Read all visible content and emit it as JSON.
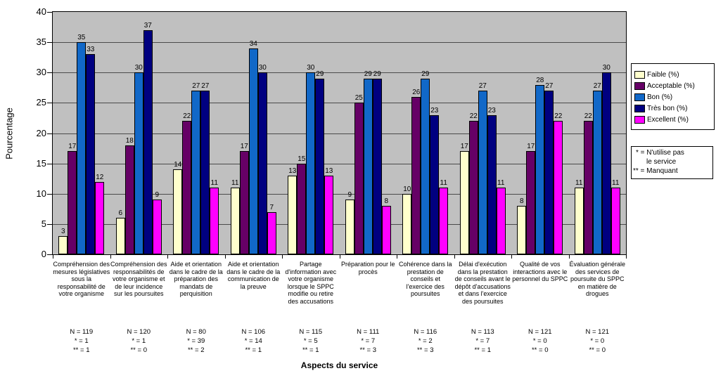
{
  "chart_data": {
    "type": "bar",
    "title": "",
    "ylabel": "Pourcentage",
    "xlabel": "Aspects du service",
    "ylim": [
      0,
      40
    ],
    "ytick_step": 5,
    "grid": true,
    "legend_position": "right",
    "plot_background": "#C0C0C0",
    "categories": [
      "Compréhension des mesures législatives sous la responsabilité de votre organisme",
      "Compréhension des responsabilités de votre organisme et de leur incidence sur les poursuites",
      "Aide et orientation dans le cadre de la préparation des mandats de perquisition",
      "Aide et orientation dans le cadre de la communication de la preuve",
      "Partage d'information avec votre organisme lorsque le SPPC modifie ou retire des accusations",
      "Préparation pour le procès",
      "Cohérence dans la prestation de conseils et l'exercice des poursuites",
      "Délai d'exécution dans la prestation de conseils avant le dépôt d'accusations et dans l'exercice des poursuites",
      "Qualité de vos interactions avec le personnel du SPPC",
      "Évaluation générale des services de poursuite du SPPC en matière de drogues"
    ],
    "series": [
      {
        "key": "faible",
        "name": "Faible (%)",
        "color": "#FFFFCC",
        "values": [
          3,
          6,
          14,
          11,
          13,
          9,
          10,
          17,
          8,
          11
        ]
      },
      {
        "key": "acceptable",
        "name": "Acceptable (%)",
        "color": "#660066",
        "values": [
          17,
          18,
          22,
          17,
          15,
          25,
          26,
          22,
          17,
          22
        ]
      },
      {
        "key": "bon",
        "name": "Bon (%)",
        "color": "#1168C8",
        "values": [
          35,
          30,
          27,
          34,
          30,
          29,
          29,
          27,
          28,
          27
        ]
      },
      {
        "key": "tres-bon",
        "name": "Très bon (%)",
        "color": "#000080",
        "values": [
          33,
          37,
          27,
          30,
          29,
          29,
          23,
          23,
          27,
          30
        ]
      },
      {
        "key": "excellent",
        "name": "Excellent (%)",
        "color": "#FF00FF",
        "values": [
          12,
          9,
          11,
          7,
          13,
          8,
          11,
          11,
          22,
          11
        ]
      }
    ],
    "sample_sizes": [
      [
        "N = 119",
        "* = 1",
        "** = 1"
      ],
      [
        "N = 120",
        "* = 1",
        "** = 0"
      ],
      [
        "N = 80",
        "* = 39",
        "** = 2"
      ],
      [
        "N = 106",
        "* = 14",
        "** = 1"
      ],
      [
        "N = 115",
        "* = 5",
        "** = 1"
      ],
      [
        "N = 111",
        "* = 7",
        "** = 3"
      ],
      [
        "N = 116",
        "* = 2",
        "** = 3"
      ],
      [
        "N = 113",
        "* = 7",
        "** = 1"
      ],
      [
        "N = 121",
        "* = 0",
        "** = 0"
      ],
      [
        "N = 121",
        "* = 0",
        "** = 0"
      ]
    ],
    "notes": [
      "* = N'utilise pas",
      "le service",
      "** = Manquant"
    ]
  }
}
